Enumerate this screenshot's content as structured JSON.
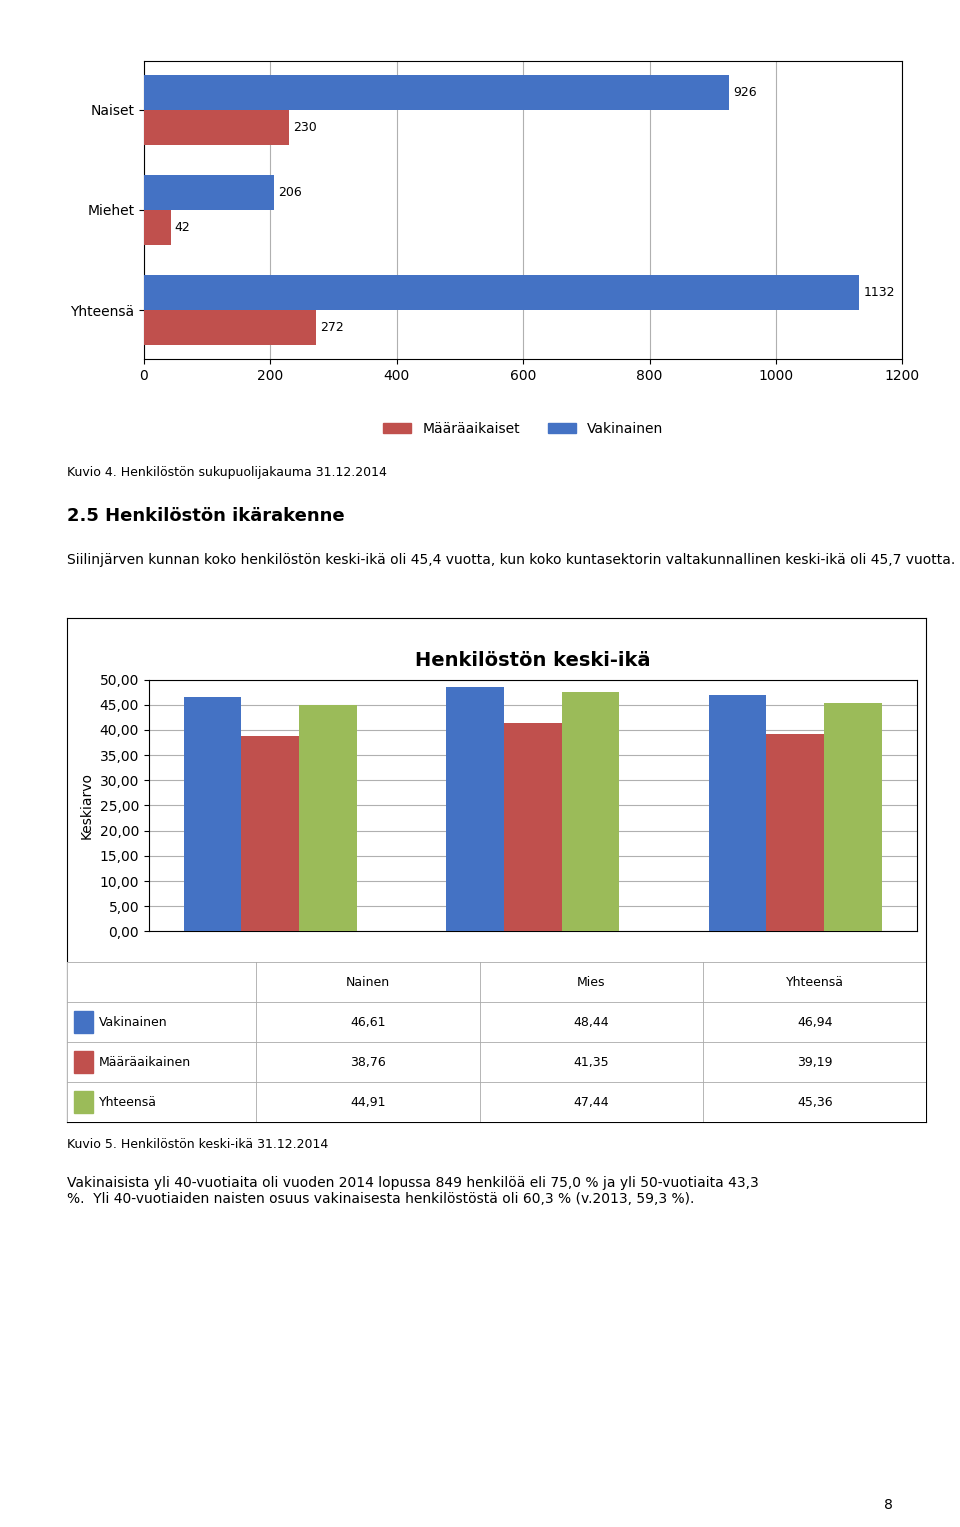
{
  "chart_data": [
    {
      "type": "bar",
      "orientation": "horizontal",
      "categories": [
        "Yhteensä",
        "Miehet",
        "Naiset"
      ],
      "series": [
        {
          "name": "Määräaikaiset",
          "color": "#C0504D",
          "values": [
            272,
            42,
            230
          ]
        },
        {
          "name": "Vakinainen",
          "color": "#4472C4",
          "values": [
            1132,
            206,
            926
          ]
        }
      ],
      "xlim": [
        0,
        1200
      ],
      "xticks": [
        0,
        200,
        400,
        600,
        800,
        1000,
        1200
      ],
      "grid": true,
      "legend": "lower center",
      "data_labels": true,
      "annotations": [
        "Kuvio 4. Henkilöstön sukupuolijakauma 31.12.2014",
        "2.5 Henkilöstön ikärakenne",
        "Siilinjärven kunnan koko henkilöstön keski-ikä oli 45,4 vuotta, kun koko kuntasektorin valtakunnallinen keski-ikä oli 45,7 vuotta."
      ]
    },
    {
      "type": "bar",
      "title": "Henkilöstön keski-ikä",
      "categories": [
        "Nainen",
        "Mies",
        "Yhteensä"
      ],
      "series": [
        {
          "name": "Vakinainen",
          "color": "#4472C4",
          "values": [
            46.61,
            48.44,
            46.94
          ],
          "value_labels": [
            "46,61",
            "48,44",
            "46,94"
          ]
        },
        {
          "name": "Määräaikainen",
          "color": "#C0504D",
          "values": [
            38.76,
            41.35,
            39.19
          ],
          "value_labels": [
            "38,76",
            "41,35",
            "39,19"
          ]
        },
        {
          "name": "Yhteensä",
          "color": "#9BBB59",
          "values": [
            44.91,
            47.44,
            45.36
          ],
          "value_labels": [
            "44,91",
            "47,44",
            "45,36"
          ]
        }
      ],
      "ylabel": "Keskiarvo",
      "ylim": [
        0,
        50
      ],
      "yticks": [
        {
          "value": 0.0,
          "label": "0,00"
        },
        {
          "value": 5.0,
          "label": "5,00"
        },
        {
          "value": 10.0,
          "label": "10,00"
        },
        {
          "value": 15.0,
          "label": "15,00"
        },
        {
          "value": 20.0,
          "label": "20,00"
        },
        {
          "value": 25.0,
          "label": "25,00"
        },
        {
          "value": 30.0,
          "label": "30,00"
        },
        {
          "value": 35.0,
          "label": "35,00"
        },
        {
          "value": 40.0,
          "label": "40,00"
        },
        {
          "value": 45.0,
          "label": "45,00"
        },
        {
          "value": 50.0,
          "label": "50,00"
        }
      ],
      "grid": true,
      "tick_labels": "y",
      "annotations": [
        "Kuvio 5. Henkilöstön keski-ikä 31.12.2014",
        "Vakinaisista yli 40-vuotiaita oli vuoden 2014 lopussa 849 henkilöä eli 75,0 % ja yli 50-vuotiaita 43,3\n%.  Yli 40-vuotiaiden naisten osuus vakinaisesta henkilöstöstä oli 60,3 % (v.2013, 59,3 %).",
        "8"
      ]
    }
  ]
}
